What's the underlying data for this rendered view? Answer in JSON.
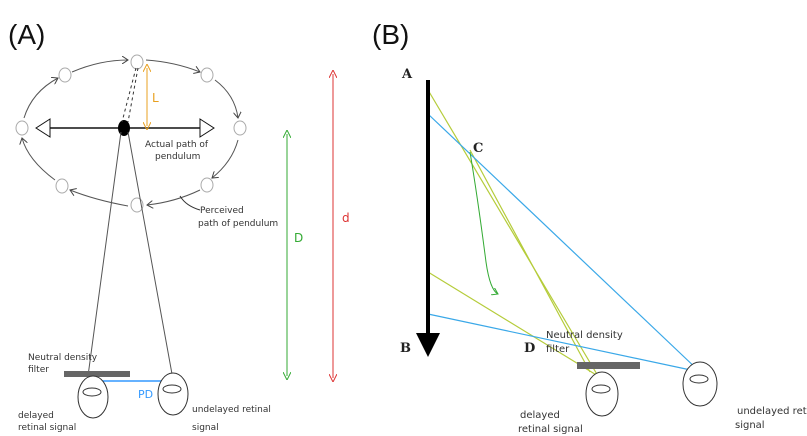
{
  "panel_a": {
    "label": "(A)",
    "length_label": "L",
    "actual_path": [
      "Actual path of",
      "pendulum"
    ],
    "perceived_path": [
      "Perceived",
      "path of pendulum"
    ],
    "distance_D": "D",
    "distance_d": "d",
    "filter": [
      "Neutral density",
      "filter"
    ],
    "pd": "PD",
    "delayed": [
      "delayed",
      "retinal signal"
    ],
    "undelayed": [
      "undelayed retinal",
      "signal"
    ]
  },
  "panel_b": {
    "label": "(B)",
    "point_a": "A",
    "point_b": "B",
    "point_c": "C",
    "point_d": "D",
    "filter": [
      "Neutral density",
      "filter"
    ],
    "delayed": [
      "delayed",
      "retinal signal"
    ],
    "undelayed": [
      "undelayed retina",
      "signal"
    ]
  }
}
